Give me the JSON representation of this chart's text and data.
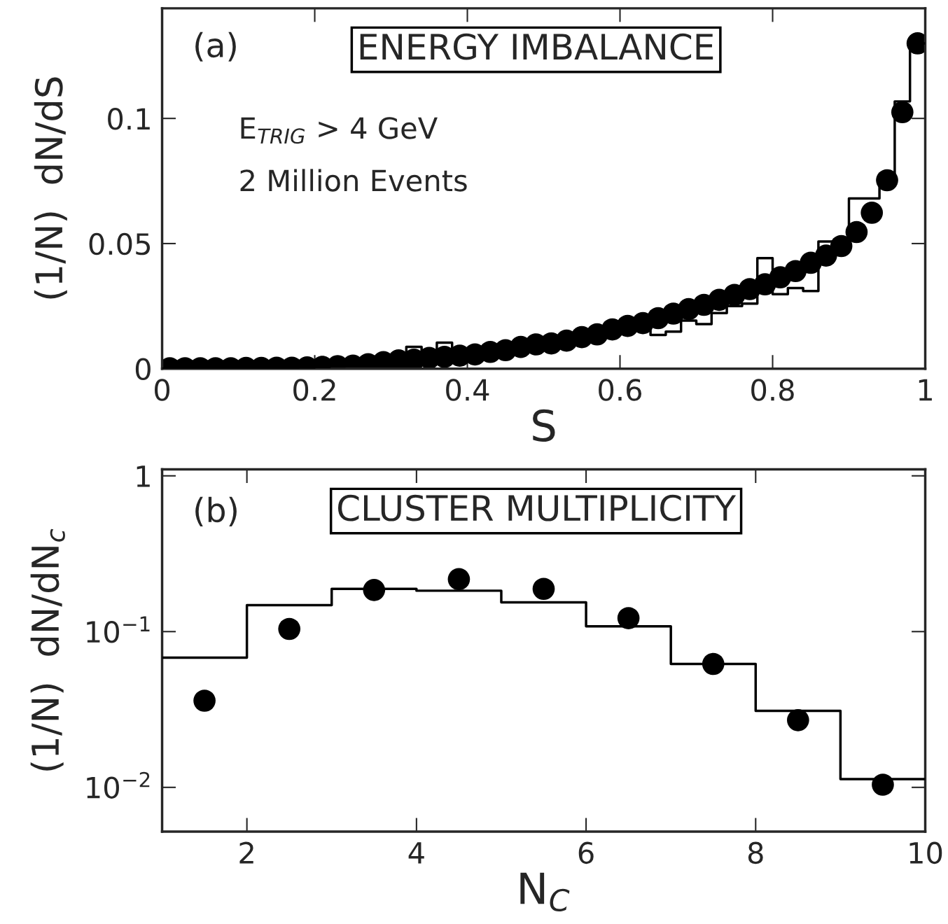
{
  "chart_data": [
    {
      "type": "histogram",
      "title": "ENERGY IMBALANCE",
      "xlabel": "S",
      "ylabel": "(1/N)  dN/dS",
      "annotations": [
        "(a)",
        "E$_{TRIG}$ > 4 GeV",
        "2 Million Events"
      ],
      "xlim": [
        0,
        1
      ],
      "ylim": [
        0,
        0.144
      ],
      "xticks": [
        0,
        0.2,
        0.4,
        0.6,
        0.8,
        1
      ],
      "yticks": [
        0,
        0.05,
        0.1
      ],
      "series": [
        {
          "type": "histogram",
          "color": "#000000",
          "bins": [
            0,
            0.02,
            0.04,
            0.06,
            0.08,
            0.1,
            0.12,
            0.14,
            0.16,
            0.18,
            0.2,
            0.22,
            0.24,
            0.26,
            0.28,
            0.3,
            0.32,
            0.34,
            0.36,
            0.38,
            0.4,
            0.42,
            0.44,
            0.46,
            0.48,
            0.5,
            0.52,
            0.54,
            0.56,
            0.58,
            0.6,
            0.62,
            0.64,
            0.66,
            0.68,
            0.7,
            0.72,
            0.74,
            0.76,
            0.78,
            0.8,
            0.82,
            0.84,
            0.86,
            0.88,
            0.9,
            0.92,
            0.94,
            0.96,
            0.98,
            1
          ],
          "values": [
            0,
            0,
            0.0001,
            0.0001,
            0.0002,
            0.0002,
            0.0003,
            0.0003,
            0.0004,
            0.0005,
            0.0007,
            0.0009,
            0.0012,
            0.0017,
            0.0027,
            0.003,
            0.0087,
            0.004,
            0.0104,
            0.005,
            0.0055,
            0.0064,
            0.0072,
            0.0084,
            0.0094,
            0.01,
            0.011,
            0.0123,
            0.0135,
            0.0152,
            0.0168,
            0.018,
            0.0135,
            0.0148,
            0.0192,
            0.0178,
            0.0222,
            0.025,
            0.026,
            0.0442,
            0.0298,
            0.0322,
            0.031,
            0.0508,
            0.048,
            0.068,
            0.068,
            0.0765,
            0.1068,
            0.13
          ]
        },
        {
          "type": "scatter",
          "color": "#000000",
          "marker": "circle",
          "x": [
            0.01,
            0.03,
            0.05,
            0.07,
            0.09,
            0.11,
            0.13,
            0.15,
            0.17,
            0.19,
            0.21,
            0.23,
            0.25,
            0.27,
            0.29,
            0.31,
            0.33,
            0.35,
            0.37,
            0.39,
            0.41,
            0.43,
            0.45,
            0.47,
            0.49,
            0.51,
            0.53,
            0.55,
            0.57,
            0.59,
            0.61,
            0.63,
            0.65,
            0.67,
            0.69,
            0.71,
            0.73,
            0.75,
            0.77,
            0.79,
            0.81,
            0.83,
            0.85,
            0.87,
            0.89,
            0.91,
            0.93,
            0.95,
            0.97,
            0.99
          ],
          "values": [
            0.0002,
            0.0002,
            0.0002,
            0.0002,
            0.0002,
            0.0003,
            0.0003,
            0.0004,
            0.0004,
            0.0005,
            0.0007,
            0.001,
            0.0012,
            0.0018,
            0.0026,
            0.0033,
            0.0036,
            0.0043,
            0.0047,
            0.0052,
            0.0057,
            0.0067,
            0.0074,
            0.0087,
            0.0097,
            0.0101,
            0.0112,
            0.0126,
            0.0137,
            0.0157,
            0.0171,
            0.0182,
            0.0202,
            0.022,
            0.0238,
            0.0255,
            0.0275,
            0.0295,
            0.0318,
            0.0337,
            0.0365,
            0.039,
            0.0423,
            0.0452,
            0.049,
            0.0546,
            0.0623,
            0.0753,
            0.1025,
            0.13
          ]
        }
      ]
    },
    {
      "type": "histogram",
      "title": "CLUSTER MULTIPLICITY",
      "xlabel": "N$_{C}$",
      "ylabel": "(1/N)  dN/dN$_{c}$",
      "annotations": [
        "(b)"
      ],
      "log": "y",
      "xlim": [
        1,
        10
      ],
      "ylim": [
        0.0052,
        1.1
      ],
      "xticks": [
        2,
        4,
        6,
        8,
        10
      ],
      "yticks": [
        {
          "value": 0.01,
          "label": "10$^{−2}$"
        },
        {
          "value": 0.1,
          "label": "10$^{−1}$"
        },
        1
      ],
      "series": [
        {
          "type": "histogram",
          "color": "#000000",
          "bins": [
            1,
            2,
            3,
            4,
            5,
            6,
            7,
            8,
            9,
            10
          ],
          "values": [
            0.068,
            0.148,
            0.188,
            0.183,
            0.154,
            0.108,
            0.062,
            0.031,
            0.0113
          ]
        },
        {
          "type": "scatter",
          "color": "#000000",
          "marker": "circle",
          "x": [
            1.5,
            2.5,
            3.5,
            4.5,
            5.5,
            6.5,
            7.5,
            8.5,
            9.5
          ],
          "values": [
            0.036,
            0.104,
            0.185,
            0.217,
            0.188,
            0.122,
            0.062,
            0.027,
            0.0104
          ]
        }
      ]
    }
  ]
}
